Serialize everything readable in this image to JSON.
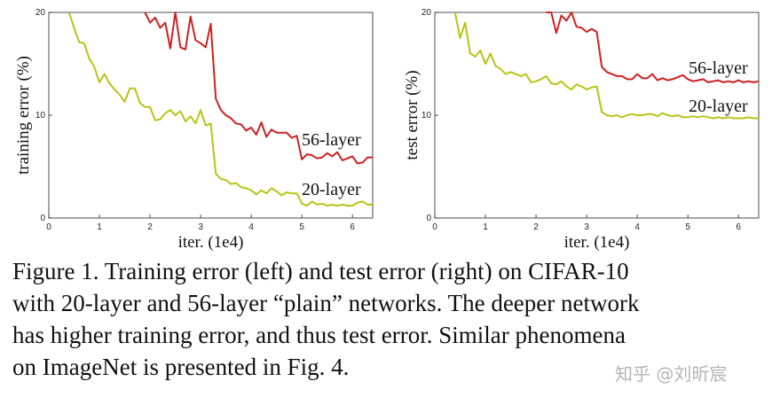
{
  "chart_data": [
    {
      "type": "line",
      "ylabel": "training error (%)",
      "xlabel": "iter. (1e4)",
      "xlim": [
        0,
        6.4
      ],
      "ylim": [
        0,
        20
      ],
      "xticks": [
        "0",
        "1",
        "2",
        "3",
        "4",
        "5",
        "6"
      ],
      "yticks": [
        "0",
        "10",
        "20"
      ],
      "grid": false,
      "series": [
        {
          "name": "56-layer",
          "color": "#d02020",
          "x": [
            1.9,
            2.0,
            2.1,
            2.2,
            2.3,
            2.4,
            2.5,
            2.6,
            2.7,
            2.8,
            2.9,
            3.0,
            3.1,
            3.2,
            3.3,
            3.4,
            3.5,
            3.6,
            3.7,
            3.8,
            3.9,
            4.0,
            4.1,
            4.2,
            4.3,
            4.4,
            4.5,
            4.6,
            4.7,
            4.8,
            4.9,
            5.0,
            5.1,
            5.2,
            5.3,
            5.4,
            5.5,
            5.6,
            5.7,
            5.8,
            5.9,
            6.0,
            6.1,
            6.2,
            6.3,
            6.4
          ],
          "y": [
            20,
            19.0,
            19.5,
            18.5,
            19.0,
            16.5,
            20.0,
            16.6,
            16.4,
            19.6,
            17.3,
            17.0,
            16.6,
            18.9,
            11.6,
            10.5,
            10.0,
            9.7,
            9.2,
            9.1,
            8.5,
            8.8,
            8.1,
            9.3,
            7.9,
            8.6,
            8.3,
            8.3,
            8.3,
            7.8,
            8.0,
            5.7,
            6.2,
            6.1,
            5.8,
            5.9,
            6.3,
            6.0,
            6.4,
            5.6,
            5.8,
            6.0,
            5.3,
            5.4,
            5.9,
            5.9
          ]
        },
        {
          "name": "20-layer",
          "color": "#b8c416",
          "x": [
            0.4,
            0.5,
            0.6,
            0.7,
            0.8,
            0.9,
            1.0,
            1.1,
            1.2,
            1.3,
            1.4,
            1.5,
            1.6,
            1.7,
            1.8,
            1.9,
            2.0,
            2.1,
            2.2,
            2.3,
            2.4,
            2.5,
            2.6,
            2.7,
            2.8,
            2.9,
            3.0,
            3.1,
            3.2,
            3.3,
            3.4,
            3.5,
            3.6,
            3.7,
            3.8,
            3.9,
            4.0,
            4.1,
            4.2,
            4.3,
            4.4,
            4.5,
            4.6,
            4.7,
            4.8,
            4.9,
            5.0,
            5.1,
            5.2,
            5.3,
            5.4,
            5.5,
            5.6,
            5.7,
            5.8,
            5.9,
            6.0,
            6.1,
            6.2,
            6.3,
            6.4
          ],
          "y": [
            20,
            18.5,
            17.1,
            17.0,
            15.5,
            14.7,
            13.2,
            14.0,
            13.1,
            12.5,
            12.0,
            11.3,
            12.6,
            12.6,
            11.2,
            10.8,
            10.8,
            9.5,
            9.6,
            10.2,
            10.5,
            10.0,
            10.4,
            9.4,
            9.9,
            9.2,
            10.5,
            9.0,
            9.2,
            4.3,
            3.8,
            3.7,
            3.3,
            3.4,
            3.0,
            2.9,
            2.7,
            2.3,
            2.7,
            2.4,
            2.9,
            2.6,
            2.2,
            2.5,
            2.4,
            2.4,
            1.4,
            1.2,
            1.6,
            1.3,
            1.4,
            1.2,
            1.3,
            1.2,
            1.3,
            1.2,
            1.2,
            1.5,
            1.6,
            1.3,
            1.3
          ]
        }
      ]
    },
    {
      "type": "line",
      "ylabel": "test error (%)",
      "xlabel": "iter. (1e4)",
      "xlim": [
        0,
        6.4
      ],
      "ylim": [
        0,
        20
      ],
      "xticks": [
        "0",
        "1",
        "2",
        "3",
        "4",
        "5",
        "6"
      ],
      "yticks": [
        "0",
        "10",
        "20"
      ],
      "grid": false,
      "series": [
        {
          "name": "56-layer",
          "color": "#d02020",
          "x": [
            2.2,
            2.3,
            2.4,
            2.5,
            2.6,
            2.7,
            2.8,
            2.9,
            3.0,
            3.1,
            3.2,
            3.3,
            3.4,
            3.5,
            3.6,
            3.7,
            3.8,
            3.9,
            4.0,
            4.1,
            4.2,
            4.3,
            4.4,
            4.5,
            4.6,
            4.7,
            4.8,
            4.9,
            5.0,
            5.1,
            5.2,
            5.3,
            5.4,
            5.5,
            5.6,
            5.7,
            5.8,
            5.9,
            6.0,
            6.1,
            6.2,
            6.3,
            6.4
          ],
          "y": [
            20,
            20.0,
            18.0,
            19.7,
            19.2,
            20.0,
            18.6,
            18.5,
            18.1,
            18.4,
            18.1,
            14.7,
            14.2,
            14.0,
            13.8,
            13.8,
            13.5,
            13.5,
            14.0,
            13.6,
            13.6,
            14.0,
            13.4,
            13.6,
            13.4,
            13.5,
            13.7,
            13.9,
            13.5,
            13.3,
            13.4,
            13.5,
            13.2,
            13.3,
            13.4,
            13.2,
            13.3,
            13.2,
            13.4,
            13.2,
            13.3,
            13.2,
            13.3
          ]
        },
        {
          "name": "20-layer",
          "color": "#b8c416",
          "x": [
            0.4,
            0.5,
            0.6,
            0.7,
            0.8,
            0.9,
            1.0,
            1.1,
            1.2,
            1.3,
            1.4,
            1.5,
            1.6,
            1.7,
            1.8,
            1.9,
            2.0,
            2.1,
            2.2,
            2.3,
            2.4,
            2.5,
            2.6,
            2.7,
            2.8,
            2.9,
            3.0,
            3.1,
            3.2,
            3.3,
            3.4,
            3.5,
            3.6,
            3.7,
            3.8,
            3.9,
            4.0,
            4.1,
            4.2,
            4.3,
            4.4,
            4.5,
            4.6,
            4.7,
            4.8,
            4.9,
            5.0,
            5.1,
            5.2,
            5.3,
            5.4,
            5.5,
            5.6,
            5.7,
            5.8,
            5.9,
            6.0,
            6.1,
            6.2,
            6.3,
            6.4
          ],
          "y": [
            20,
            17.5,
            19.0,
            16.0,
            15.7,
            16.3,
            15.0,
            16.0,
            14.8,
            14.5,
            14.0,
            14.2,
            14.0,
            13.8,
            14.0,
            13.2,
            13.3,
            13.5,
            13.8,
            13.1,
            13.0,
            13.3,
            12.8,
            12.5,
            13.0,
            12.8,
            12.5,
            12.7,
            12.8,
            10.3,
            10.0,
            9.9,
            10.0,
            9.8,
            10.0,
            10.1,
            10.0,
            10.0,
            10.1,
            10.1,
            9.9,
            10.2,
            10.0,
            9.9,
            10.0,
            9.8,
            9.8,
            9.9,
            9.8,
            9.9,
            9.8,
            9.7,
            9.8,
            9.7,
            9.8,
            9.7,
            9.7,
            9.7,
            9.8,
            9.7,
            9.7
          ]
        }
      ]
    }
  ],
  "caption": {
    "lines": [
      "Figure 1. Training error (left) and test error (right) on CIFAR-10",
      "with 20-layer and 56-layer “plain” networks. The deeper network",
      "has higher training error, and thus test error. Similar phenomena",
      "on ImageNet is presented in Fig. 4."
    ]
  },
  "watermark": "知乎 @刘昕宸"
}
